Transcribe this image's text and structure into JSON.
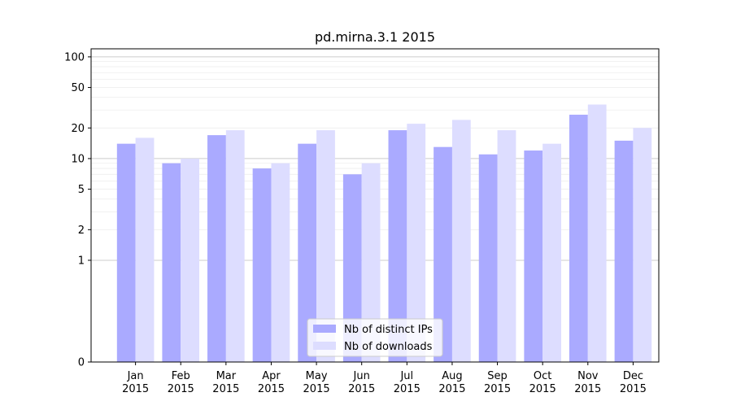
{
  "chart_data": {
    "type": "bar",
    "title": "pd.mirna.3.1 2015",
    "xlabel": "",
    "ylabel": "",
    "y_scale": "symlog",
    "ylim": [
      0,
      120
    ],
    "grid": true,
    "legend_position": "bottom-center",
    "categories": [
      {
        "month": "Jan",
        "year": "2015"
      },
      {
        "month": "Feb",
        "year": "2015"
      },
      {
        "month": "Mar",
        "year": "2015"
      },
      {
        "month": "Apr",
        "year": "2015"
      },
      {
        "month": "May",
        "year": "2015"
      },
      {
        "month": "Jun",
        "year": "2015"
      },
      {
        "month": "Jul",
        "year": "2015"
      },
      {
        "month": "Aug",
        "year": "2015"
      },
      {
        "month": "Sep",
        "year": "2015"
      },
      {
        "month": "Oct",
        "year": "2015"
      },
      {
        "month": "Nov",
        "year": "2015"
      },
      {
        "month": "Dec",
        "year": "2015"
      }
    ],
    "y_ticks": [
      "0",
      "1",
      "2",
      "5",
      "10",
      "20",
      "50",
      "100"
    ],
    "series": [
      {
        "name": "Nb of distinct IPs",
        "color": "#aaaaff",
        "values": [
          14,
          9,
          17,
          8,
          14,
          7,
          19,
          13,
          11,
          12,
          27,
          15
        ]
      },
      {
        "name": "Nb of downloads",
        "color": "#ddddff",
        "values": [
          16,
          10,
          19,
          9,
          19,
          9,
          22,
          24,
          19,
          14,
          34,
          20
        ]
      }
    ]
  }
}
